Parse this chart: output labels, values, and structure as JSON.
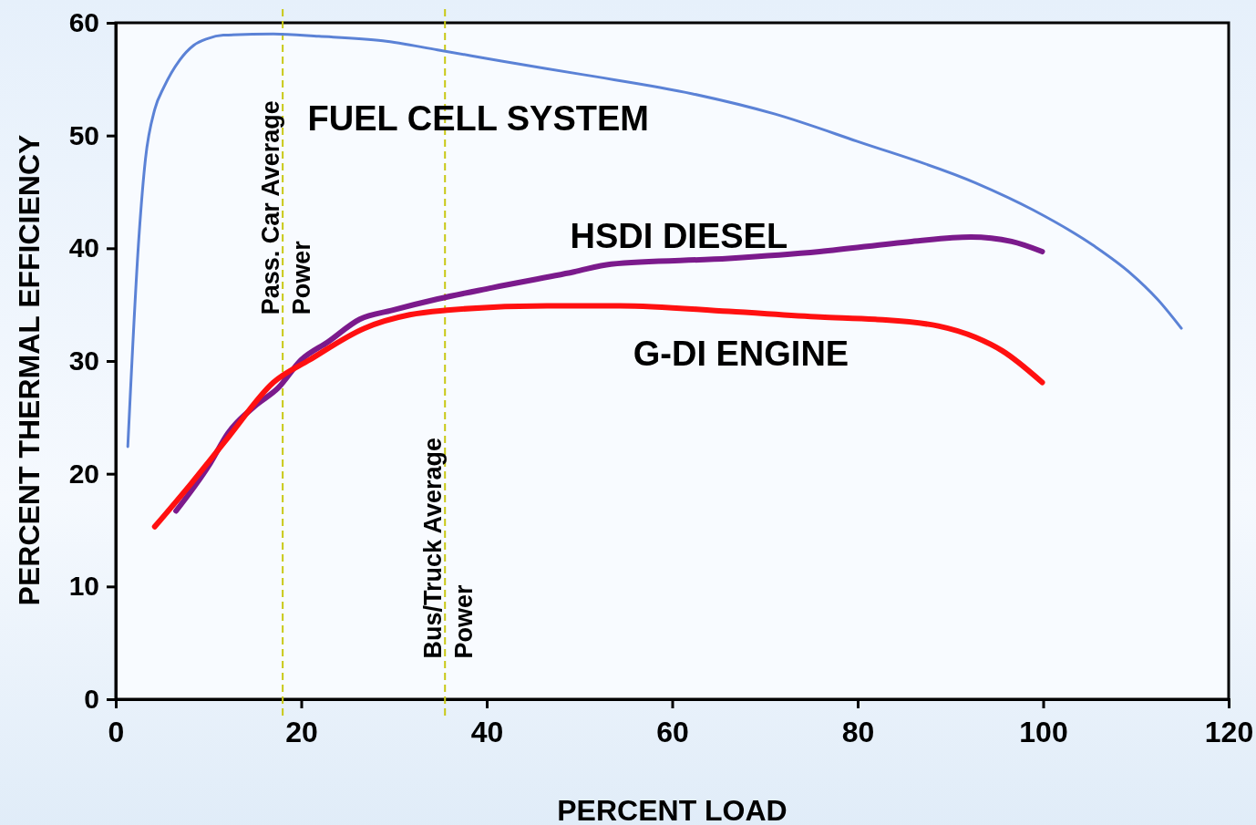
{
  "chart_data": {
    "type": "line",
    "xlabel": "PERCENT LOAD",
    "ylabel": "PERCENT THERMAL EFFICIENCY",
    "xlim": [
      0,
      120
    ],
    "ylim": [
      0,
      60
    ],
    "xticks": [
      0,
      20,
      40,
      60,
      80,
      100,
      120
    ],
    "yticks": [
      0,
      10,
      20,
      30,
      40,
      50,
      60
    ],
    "grid": false,
    "marker": "none",
    "series": [
      {
        "name": "FUEL CELL SYSTEM",
        "color": "#5b82d6",
        "x": [
          1.3,
          2.5,
          3.2,
          4.2,
          5.2,
          6.9,
          8.4,
          9.9,
          11.6,
          17,
          21.9,
          28.8,
          34.7,
          41.6,
          50.4,
          62.2,
          71.1,
          79.9,
          92.7,
          98.9,
          105.5,
          109.4,
          112.3,
          114.9
        ],
        "values": [
          22.4,
          41,
          47.9,
          52.3,
          54.3,
          56.7,
          58,
          58.6,
          58.9,
          59,
          58.8,
          58.4,
          57.6,
          56.6,
          55.4,
          53.7,
          51.9,
          49.5,
          45.8,
          43.4,
          40.2,
          37.8,
          35.5,
          32.9
        ]
      },
      {
        "name": "HSDI DIESEL",
        "color": "#7b1a8c",
        "x": [
          6.5,
          10.1,
          12.1,
          15,
          17.5,
          20,
          22.9,
          26.3,
          29.8,
          34.7,
          40.6,
          49.4,
          53.4,
          66.1,
          75.9,
          85.8,
          92.2,
          96.6,
          99.9
        ],
        "values": [
          16.7,
          20.8,
          23.6,
          26,
          27.6,
          30.1,
          31.7,
          33.7,
          34.5,
          35.5,
          36.5,
          37.9,
          38.6,
          39.1,
          39.7,
          40.6,
          41,
          40.6,
          39.7
        ]
      },
      {
        "name": "G-DI ENGINE",
        "color": "#ff1010",
        "x": [
          4.2,
          8.2,
          12.1,
          17,
          20.9,
          26.8,
          31.7,
          35.7,
          46.5,
          54.4,
          66.1,
          76,
          81.9,
          88.7,
          92.7,
          95.6,
          99.9
        ],
        "values": [
          15.3,
          19.2,
          23.2,
          28.1,
          30.1,
          32.9,
          34.1,
          34.5,
          34.9,
          34.9,
          34.4,
          33.9,
          33.7,
          33.1,
          32.1,
          30.9,
          28.1
        ]
      }
    ],
    "ref_lines": [
      {
        "axis": "x",
        "value": 18,
        "label": "Pass. Car Average Power",
        "color": "#c8c814",
        "line_style": "dashed"
      },
      {
        "axis": "x",
        "value": 35.5,
        "label": "Bus/Truck Average Power",
        "color": "#c8c814",
        "line_style": "dashed"
      }
    ]
  }
}
